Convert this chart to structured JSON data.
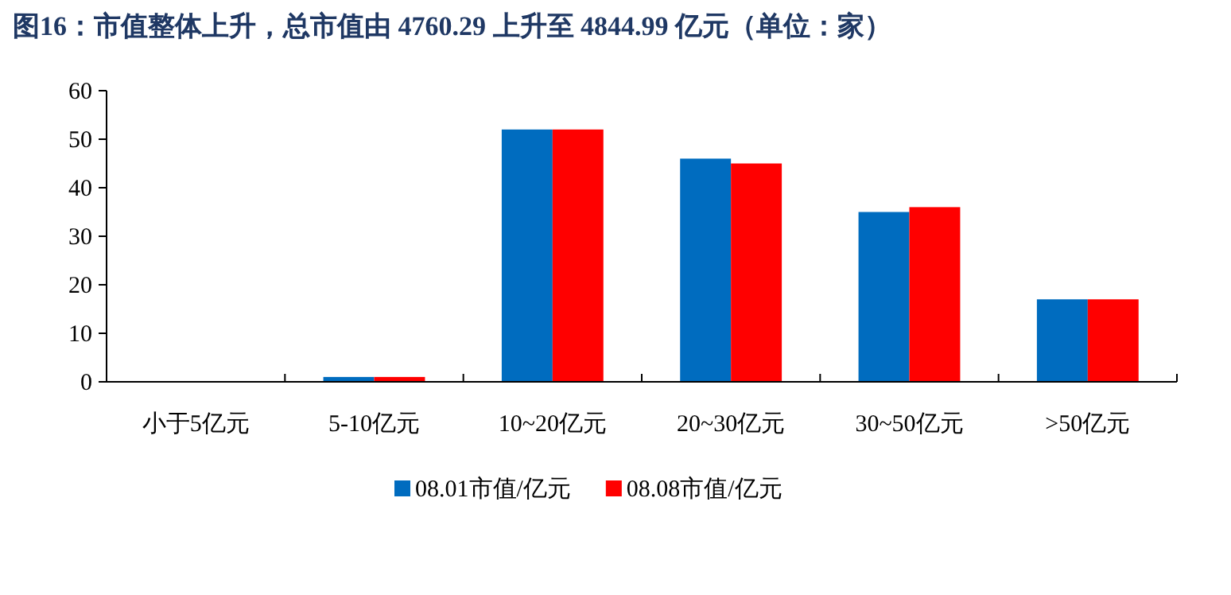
{
  "chart_data": {
    "type": "bar",
    "title": "图16：市值整体上升，总市值由 4760.29 上升至 4844.99 亿元（单位：家）",
    "categories": [
      "小于5亿元",
      "5-10亿元",
      "10~20亿元",
      "20~30亿元",
      "30~50亿元",
      ">50亿元"
    ],
    "series": [
      {
        "name": "08.01市值/亿元",
        "color": "#006cbf",
        "values": [
          0,
          1,
          52,
          46,
          35,
          17
        ]
      },
      {
        "name": "08.08市值/亿元",
        "color": "#ff0000",
        "values": [
          0,
          1,
          52,
          45,
          36,
          17
        ]
      }
    ],
    "ylim": [
      0,
      60
    ],
    "yticks": [
      0,
      10,
      20,
      30,
      40,
      50,
      60
    ],
    "grid": false,
    "legend": "bottom"
  }
}
